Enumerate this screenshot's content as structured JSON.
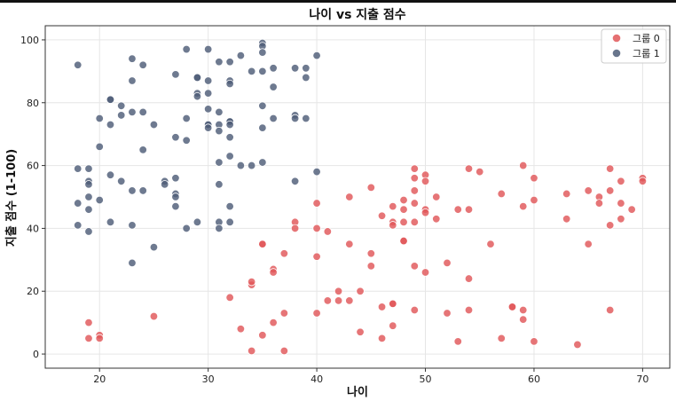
{
  "chart_data": {
    "type": "scatter",
    "title": "나이 vs 지출 점수",
    "xlabel": "나이",
    "ylabel": "지출 점수 (1-100)",
    "xlim": [
      15,
      72.5
    ],
    "ylim": [
      -4.5,
      104.5
    ],
    "xticks": [
      20,
      30,
      40,
      50,
      60,
      70
    ],
    "yticks": [
      0,
      20,
      40,
      60,
      80,
      100
    ],
    "grid": true,
    "legend_position": "top-right",
    "series": [
      {
        "name": "그룹 0",
        "color": "#e15759",
        "points": [
          [
            19,
            10
          ],
          [
            19,
            5
          ],
          [
            20,
            6
          ],
          [
            20,
            5
          ],
          [
            25,
            12
          ],
          [
            32,
            18
          ],
          [
            33,
            8
          ],
          [
            34,
            1
          ],
          [
            34,
            22
          ],
          [
            34,
            23
          ],
          [
            35,
            35
          ],
          [
            35,
            35
          ],
          [
            35,
            6
          ],
          [
            36,
            27
          ],
          [
            36,
            26
          ],
          [
            36,
            10
          ],
          [
            37,
            32
          ],
          [
            37,
            13
          ],
          [
            37,
            1
          ],
          [
            38,
            42
          ],
          [
            38,
            40
          ],
          [
            40,
            48
          ],
          [
            40,
            40
          ],
          [
            40,
            31
          ],
          [
            40,
            13
          ],
          [
            41,
            39
          ],
          [
            41,
            17
          ],
          [
            42,
            20
          ],
          [
            42,
            17
          ],
          [
            43,
            50
          ],
          [
            43,
            35
          ],
          [
            43,
            17
          ],
          [
            44,
            20
          ],
          [
            44,
            7
          ],
          [
            45,
            53
          ],
          [
            45,
            32
          ],
          [
            45,
            28
          ],
          [
            46,
            44
          ],
          [
            46,
            15
          ],
          [
            46,
            5
          ],
          [
            47,
            47
          ],
          [
            47,
            42
          ],
          [
            47,
            41
          ],
          [
            47,
            16
          ],
          [
            47,
            16
          ],
          [
            47,
            9
          ],
          [
            48,
            49
          ],
          [
            48,
            46
          ],
          [
            48,
            42
          ],
          [
            48,
            36
          ],
          [
            48,
            36
          ],
          [
            49,
            59
          ],
          [
            49,
            56
          ],
          [
            49,
            52
          ],
          [
            49,
            48
          ],
          [
            49,
            42
          ],
          [
            49,
            28
          ],
          [
            49,
            14
          ],
          [
            50,
            57
          ],
          [
            50,
            55
          ],
          [
            50,
            46
          ],
          [
            50,
            45
          ],
          [
            50,
            26
          ],
          [
            51,
            50
          ],
          [
            51,
            43
          ],
          [
            52,
            29
          ],
          [
            52,
            13
          ],
          [
            53,
            46
          ],
          [
            53,
            4
          ],
          [
            54,
            59
          ],
          [
            54,
            46
          ],
          [
            54,
            24
          ],
          [
            54,
            14
          ],
          [
            55,
            58
          ],
          [
            56,
            35
          ],
          [
            57,
            51
          ],
          [
            57,
            5
          ],
          [
            58,
            15
          ],
          [
            58,
            15
          ],
          [
            59,
            60
          ],
          [
            59,
            47
          ],
          [
            59,
            14
          ],
          [
            59,
            11
          ],
          [
            60,
            56
          ],
          [
            60,
            49
          ],
          [
            60,
            4
          ],
          [
            63,
            51
          ],
          [
            63,
            43
          ],
          [
            64,
            3
          ],
          [
            65,
            52
          ],
          [
            65,
            35
          ],
          [
            66,
            50
          ],
          [
            66,
            48
          ],
          [
            67,
            59
          ],
          [
            67,
            52
          ],
          [
            67,
            41
          ],
          [
            67,
            14
          ],
          [
            68,
            55
          ],
          [
            68,
            48
          ],
          [
            68,
            43
          ],
          [
            69,
            46
          ],
          [
            70,
            56
          ],
          [
            70,
            55
          ]
        ]
      },
      {
        "name": "그룹 1",
        "color": "#4e5d78",
        "points": [
          [
            18,
            92
          ],
          [
            18,
            59
          ],
          [
            18,
            48
          ],
          [
            18,
            41
          ],
          [
            19,
            59
          ],
          [
            19,
            55
          ],
          [
            19,
            54
          ],
          [
            19,
            50
          ],
          [
            19,
            46
          ],
          [
            19,
            39
          ],
          [
            20,
            75
          ],
          [
            20,
            66
          ],
          [
            20,
            49
          ],
          [
            21,
            81
          ],
          [
            21,
            81
          ],
          [
            21,
            73
          ],
          [
            21,
            57
          ],
          [
            21,
            42
          ],
          [
            22,
            79
          ],
          [
            22,
            76
          ],
          [
            22,
            55
          ],
          [
            23,
            94
          ],
          [
            23,
            87
          ],
          [
            23,
            77
          ],
          [
            23,
            52
          ],
          [
            23,
            41
          ],
          [
            23,
            29
          ],
          [
            24,
            92
          ],
          [
            24,
            77
          ],
          [
            24,
            65
          ],
          [
            24,
            52
          ],
          [
            25,
            73
          ],
          [
            25,
            34
          ],
          [
            26,
            55
          ],
          [
            26,
            54
          ],
          [
            27,
            89
          ],
          [
            27,
            69
          ],
          [
            27,
            56
          ],
          [
            27,
            51
          ],
          [
            27,
            50
          ],
          [
            27,
            47
          ],
          [
            28,
            97
          ],
          [
            28,
            75
          ],
          [
            28,
            68
          ],
          [
            28,
            40
          ],
          [
            29,
            88
          ],
          [
            29,
            88
          ],
          [
            29,
            83
          ],
          [
            29,
            82
          ],
          [
            29,
            42
          ],
          [
            30,
            97
          ],
          [
            30,
            87
          ],
          [
            30,
            83
          ],
          [
            30,
            78
          ],
          [
            30,
            73
          ],
          [
            30,
            73
          ],
          [
            30,
            72
          ],
          [
            31,
            93
          ],
          [
            31,
            77
          ],
          [
            31,
            73
          ],
          [
            31,
            71
          ],
          [
            31,
            61
          ],
          [
            31,
            54
          ],
          [
            31,
            42
          ],
          [
            31,
            40
          ],
          [
            32,
            93
          ],
          [
            32,
            87
          ],
          [
            32,
            86
          ],
          [
            32,
            74
          ],
          [
            32,
            74
          ],
          [
            32,
            73
          ],
          [
            32,
            69
          ],
          [
            32,
            63
          ],
          [
            32,
            47
          ],
          [
            32,
            42
          ],
          [
            33,
            95
          ],
          [
            33,
            60
          ],
          [
            34,
            90
          ],
          [
            34,
            60
          ],
          [
            35,
            99
          ],
          [
            35,
            98
          ],
          [
            35,
            96
          ],
          [
            35,
            90
          ],
          [
            35,
            79
          ],
          [
            35,
            72
          ],
          [
            35,
            61
          ],
          [
            36,
            91
          ],
          [
            36,
            85
          ],
          [
            36,
            75
          ],
          [
            38,
            91
          ],
          [
            38,
            76
          ],
          [
            38,
            75
          ],
          [
            38,
            55
          ],
          [
            39,
            91
          ],
          [
            39,
            88
          ],
          [
            39,
            75
          ],
          [
            40,
            95
          ],
          [
            40,
            58
          ]
        ]
      }
    ]
  }
}
